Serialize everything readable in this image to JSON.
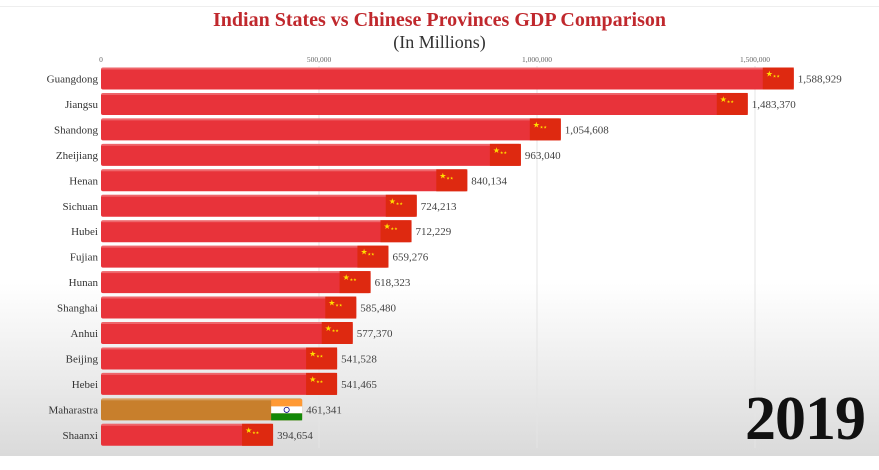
{
  "chart_data": {
    "type": "bar",
    "orientation": "horizontal",
    "title": "Indian States vs Chinese Provinces GDP Comparison",
    "subtitle": "(In Millions)",
    "xlim": [
      0,
      1650000
    ],
    "x_ticks": [
      0,
      500000,
      1000000,
      1500000
    ],
    "x_tick_labels": [
      "0",
      "500,000",
      "1,000,000",
      "1,500,000"
    ],
    "axis_position": "top",
    "grid": true,
    "year": "2019",
    "colors": {
      "China": "#e8333a",
      "India": "#c87f2c",
      "title": "#c0282d"
    },
    "bars": [
      {
        "label": "Guangdong",
        "value": 1588929,
        "value_label": "1,588,929",
        "country": "China"
      },
      {
        "label": "Jiangsu",
        "value": 1483370,
        "value_label": "1,483,370",
        "country": "China"
      },
      {
        "label": "Shandong",
        "value": 1054608,
        "value_label": "1,054,608",
        "country": "China"
      },
      {
        "label": "Zheijiang",
        "value": 963040,
        "value_label": "963,040",
        "country": "China"
      },
      {
        "label": "Henan",
        "value": 840134,
        "value_label": "840,134",
        "country": "China"
      },
      {
        "label": "Sichuan",
        "value": 724213,
        "value_label": "724,213",
        "country": "China"
      },
      {
        "label": "Hubei",
        "value": 712229,
        "value_label": "712,229",
        "country": "China"
      },
      {
        "label": "Fujian",
        "value": 659276,
        "value_label": "659,276",
        "country": "China"
      },
      {
        "label": "Hunan",
        "value": 618323,
        "value_label": "618,323",
        "country": "China"
      },
      {
        "label": "Shanghai",
        "value": 585480,
        "value_label": "585,480",
        "country": "China"
      },
      {
        "label": "Anhui",
        "value": 577370,
        "value_label": "577,370",
        "country": "China"
      },
      {
        "label": "Beijing",
        "value": 541528,
        "value_label": "541,528",
        "country": "China"
      },
      {
        "label": "Hebei",
        "value": 541465,
        "value_label": "541,465",
        "country": "China"
      },
      {
        "label": "Maharastra",
        "value": 461341,
        "value_label": "461,341",
        "country": "India"
      },
      {
        "label": "Shaanxi",
        "value": 394654,
        "value_label": "394,654",
        "country": "China"
      }
    ]
  }
}
